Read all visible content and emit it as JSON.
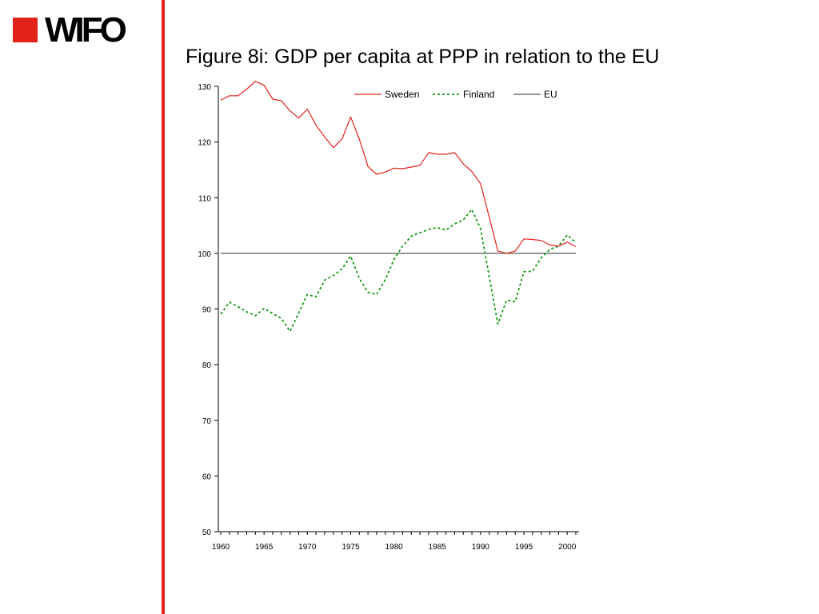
{
  "logo": {
    "text": "WIFO"
  },
  "title": "Figure 8i: GDP per capita at PPP in relation to the EU",
  "chart_data": {
    "type": "line",
    "title": "Figure 8i: GDP per capita at PPP in relation to the EU",
    "xlabel": "",
    "ylabel": "",
    "xlim": [
      1960,
      2001
    ],
    "ylim": [
      50,
      130
    ],
    "yticks": [
      50,
      60,
      70,
      80,
      90,
      100,
      110,
      120,
      130
    ],
    "xtick_labels": [
      "1960",
      "1965",
      "1970",
      "1975",
      "1980",
      "1985",
      "1990",
      "1995",
      "2000"
    ],
    "legend_position": "top-right",
    "grid": false,
    "x": [
      1960,
      1961,
      1962,
      1963,
      1964,
      1965,
      1966,
      1967,
      1968,
      1969,
      1970,
      1971,
      1972,
      1973,
      1974,
      1975,
      1976,
      1977,
      1978,
      1979,
      1980,
      1981,
      1982,
      1983,
      1984,
      1985,
      1986,
      1987,
      1988,
      1989,
      1990,
      1991,
      1992,
      1993,
      1994,
      1995,
      1996,
      1997,
      1998,
      1999,
      2000,
      2001
    ],
    "series": [
      {
        "name": "Sweden",
        "color": "#e2231a",
        "style": "solid",
        "values": [
          127.5,
          128.3,
          128.3,
          129.5,
          130.9,
          130.2,
          127.7,
          127.4,
          125.6,
          124.3,
          125.9,
          123.0,
          120.9,
          119.0,
          120.5,
          124.5,
          120.5,
          115.6,
          114.2,
          114.6,
          115.3,
          115.2,
          115.5,
          115.8,
          118.1,
          117.8,
          117.8,
          118.1,
          116.1,
          114.7,
          112.5,
          106.5,
          100.4,
          100.0,
          100.4,
          102.6,
          102.5,
          102.3,
          101.5,
          101.3,
          102.0,
          101.2
        ]
      },
      {
        "name": "Finland",
        "color": "#119911",
        "style": "dotted",
        "values": [
          89.1,
          91.2,
          90.4,
          89.5,
          88.8,
          90.1,
          89.2,
          88.3,
          86.0,
          89.3,
          92.6,
          92.2,
          95.2,
          96.0,
          97.2,
          99.5,
          95.5,
          93.0,
          92.6,
          95.3,
          98.9,
          101.3,
          103.1,
          103.7,
          104.3,
          104.6,
          104.2,
          105.3,
          106.0,
          107.9,
          104.4,
          95.8,
          87.3,
          91.6,
          91.3,
          96.7,
          96.8,
          99.2,
          100.7,
          101.3,
          103.3,
          101.9
        ]
      },
      {
        "name": "EU",
        "color": "#555555",
        "style": "solid",
        "values": [
          100,
          100,
          100,
          100,
          100,
          100,
          100,
          100,
          100,
          100,
          100,
          100,
          100,
          100,
          100,
          100,
          100,
          100,
          100,
          100,
          100,
          100,
          100,
          100,
          100,
          100,
          100,
          100,
          100,
          100,
          100,
          100,
          100,
          100,
          100,
          100,
          100,
          100,
          100,
          100,
          100,
          100
        ]
      }
    ]
  }
}
